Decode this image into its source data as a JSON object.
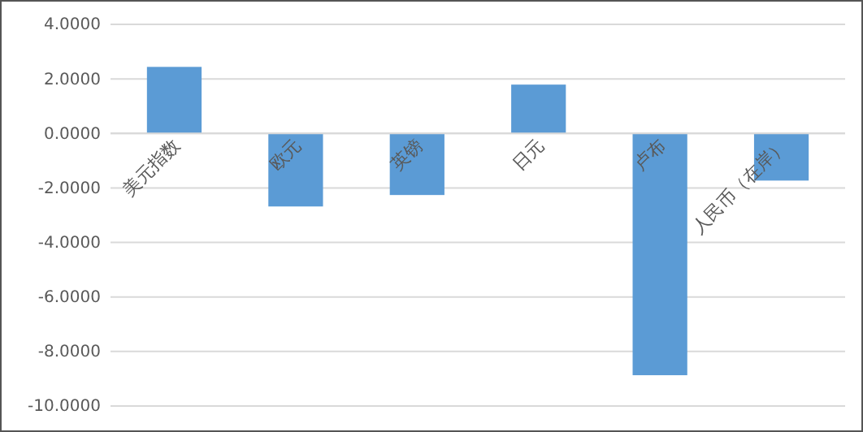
{
  "chart_data": {
    "type": "bar",
    "categories": [
      "美元指数",
      "欧元",
      "英镑",
      "日元",
      "卢布",
      "人民币（在岸）"
    ],
    "values": [
      2.44,
      -2.68,
      -2.26,
      1.79,
      -8.87,
      -1.73
    ],
    "color": "#5b9bd5",
    "ylim": [
      -10,
      4
    ],
    "yticks": [
      {
        "value": 4,
        "label": "4.0000"
      },
      {
        "value": 2,
        "label": "2.0000"
      },
      {
        "value": 0,
        "label": "0.0000"
      },
      {
        "value": -2,
        "label": "-2.0000"
      },
      {
        "value": -4,
        "label": "-4.0000"
      },
      {
        "value": -6,
        "label": "-6.0000"
      },
      {
        "value": -8,
        "label": "-8.0000"
      },
      {
        "value": -10,
        "label": "-10.0000"
      }
    ],
    "grid": "y"
  }
}
